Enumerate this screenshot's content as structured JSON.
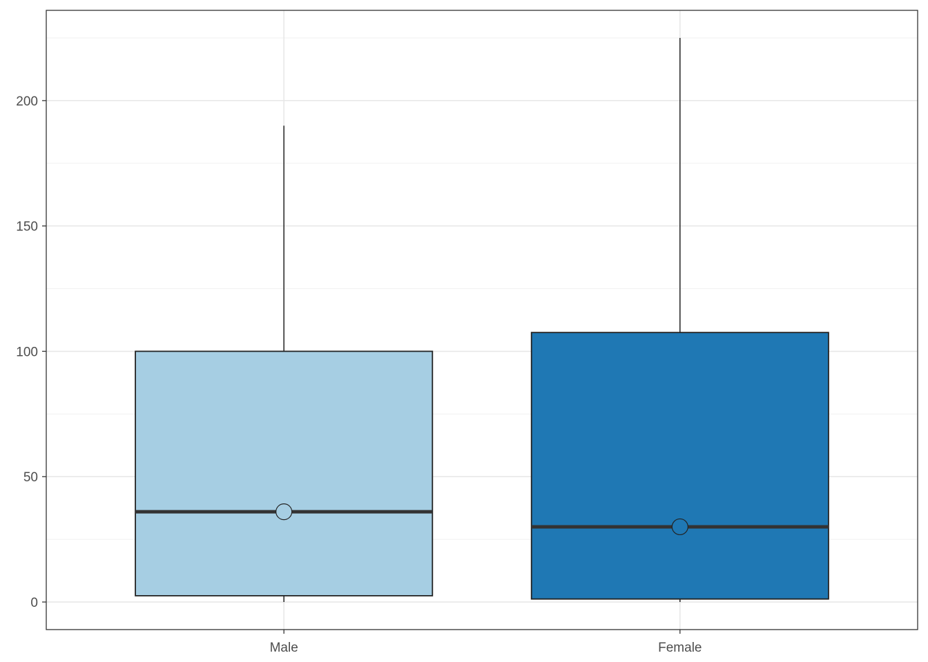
{
  "chart_data": {
    "type": "boxplot",
    "categories": [
      "Male",
      "Female"
    ],
    "boxes": [
      {
        "category": "Male",
        "min": 0,
        "q1": 2.5,
        "median": 36,
        "q3": 100,
        "max": 190,
        "mean": 36,
        "fill": "#A6CEE3"
      },
      {
        "category": "Female",
        "min": 0,
        "q1": 1.2,
        "median": 30,
        "q3": 107.5,
        "max": 225,
        "mean": 30,
        "fill": "#1F78B4"
      }
    ],
    "y_ticks": [
      0,
      50,
      100,
      150,
      200
    ],
    "y_tick_labels": [
      "0",
      "50",
      "100",
      "150",
      "200"
    ],
    "ylim": [
      -11,
      236
    ],
    "title": "",
    "xlabel": "",
    "ylabel": "",
    "grid": true,
    "legend": "none"
  }
}
